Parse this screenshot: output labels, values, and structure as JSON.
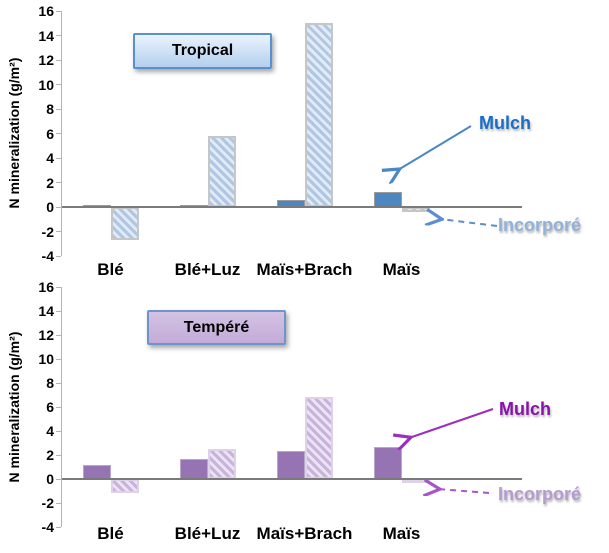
{
  "page": {
    "background": "#ffffff"
  },
  "axis": {
    "line_color": "#b3b3b3",
    "zero_line_color": "#7a7a7a",
    "text_color": "#000000"
  },
  "chart_data": [
    {
      "id": "tropical",
      "type": "bar",
      "title": "Tropical",
      "ylabel": "N mineralization (g/m²)",
      "ylim": [
        -4,
        16
      ],
      "ytick_step": 2,
      "grid": false,
      "categories": [
        "Blé",
        "Blé+Luz",
        "Maïs+Brach",
        "Maïs"
      ],
      "series": [
        {
          "name": "Mulch",
          "style": "solid",
          "values": [
            0.2,
            0.2,
            0.6,
            1.2
          ]
        },
        {
          "name": "Incorporé",
          "style": "hatched",
          "values": [
            -2.7,
            5.8,
            15.0,
            -0.4
          ]
        }
      ],
      "annotations": {
        "mulch": "Mulch",
        "incorpore": "Incorporé"
      },
      "colors": {
        "mulch_fill": "#4e86c0",
        "mulch_border": "#9b9b9b",
        "hatch_stripe": "#aec7e3",
        "hatch_bg": "#e2eaf5",
        "hatch_border": "#c6c6c6",
        "mulch_label": "#1a6ec8",
        "incorpore_label": "#92b2da",
        "arrow_solid": "#4a86c8",
        "arrow_dashed": "#5b8fd0",
        "title_bg_top": "#eaf3fe",
        "title_bg_bottom": "#b3d0ee",
        "title_border": "#5a8fd0"
      }
    },
    {
      "id": "tempere",
      "type": "bar",
      "title": "Tempéré",
      "ylabel": "N mineralization (g/m²)",
      "ylim": [
        -4,
        16
      ],
      "ytick_step": 2,
      "grid": false,
      "categories": [
        "Blé",
        "Blé+Luz",
        "Maïs+Brach",
        "Maïs"
      ],
      "series": [
        {
          "name": "Mulch",
          "style": "solid",
          "values": [
            1.2,
            1.7,
            2.3,
            2.7
          ]
        },
        {
          "name": "Incorporé",
          "style": "hatched",
          "values": [
            -1.2,
            2.5,
            6.8,
            -0.3
          ]
        }
      ],
      "annotations": {
        "mulch": "Mulch",
        "incorpore": "Incorporé"
      },
      "colors": {
        "mulch_fill": "#9673b2",
        "mulch_border": "#b9a6cc",
        "hatch_stripe": "#c9b3db",
        "hatch_bg": "#ece3f4",
        "hatch_border": "#ddd2e8",
        "mulch_label": "#8912ad",
        "incorpore_label": "#b49cd0",
        "arrow_solid": "#9a30bd",
        "arrow_dashed": "#a556c8",
        "title_bg_top": "#d4c3e4",
        "title_bg_bottom": "#c3abd8",
        "title_border": "#6d94cb"
      }
    }
  ]
}
